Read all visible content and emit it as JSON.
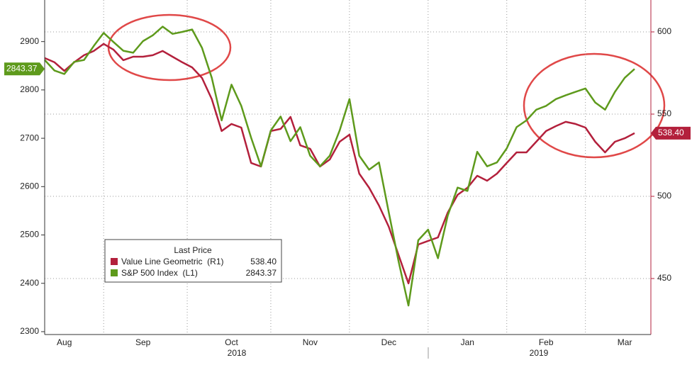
{
  "chart_data": {
    "type": "line",
    "categories": [
      null,
      null,
      "Aug",
      null,
      null,
      null,
      null,
      null,
      null,
      null,
      "Sep",
      null,
      null,
      null,
      null,
      null,
      null,
      null,
      null,
      "Oct",
      null,
      null,
      null,
      null,
      null,
      null,
      null,
      "Nov",
      null,
      null,
      null,
      null,
      null,
      null,
      null,
      "Dec",
      null,
      null,
      null,
      null,
      null,
      null,
      null,
      "Jan",
      null,
      null,
      null,
      null,
      null,
      null,
      null,
      "Feb",
      null,
      null,
      null,
      null,
      null,
      null,
      null,
      "Mar",
      null
    ],
    "year_labels": [
      "2018",
      "2019"
    ],
    "legend_title": "Last Price",
    "series": [
      {
        "name": "Value Line Geometric  (R1)",
        "color": "#b3203c",
        "axis": "y2",
        "last_label": "538.40",
        "values": [
          584.1,
          581.5,
          576.3,
          581.5,
          585.8,
          588.4,
          592.7,
          589.2,
          582.8,
          584.9,
          584.9,
          585.8,
          588.4,
          584.9,
          581.5,
          578.4,
          572,
          559.1,
          539.7,
          544,
          541.8,
          520.3,
          518.1,
          539.7,
          541,
          548.3,
          531,
          528.9,
          518.1,
          522.4,
          533.2,
          537.5,
          513.8,
          505.2,
          494.4,
          481.5,
          464.2,
          447,
          470.7,
          472.9,
          475,
          490.1,
          500.9,
          505.2,
          512.5,
          509.5,
          513.8,
          520.3,
          526.7,
          526.7,
          533.2,
          539.7,
          542.7,
          545.3,
          544,
          541.8,
          533.2,
          526.7,
          533.2,
          535.3,
          538.4
        ]
      },
      {
        "name": "S&P 500 Index  (L1)",
        "color": "#5e9a1c",
        "axis": "y",
        "last_label": "2843.37",
        "values": [
          2862,
          2840,
          2833,
          2858,
          2862,
          2891,
          2918,
          2899,
          2881,
          2877,
          2901,
          2913,
          2931,
          2916,
          2920,
          2925,
          2887,
          2825,
          2737,
          2811,
          2767,
          2701,
          2642,
          2716,
          2745,
          2694,
          2723,
          2664,
          2642,
          2664,
          2716,
          2781,
          2664,
          2635,
          2650,
          2547,
          2445,
          2354,
          2489,
          2511,
          2452,
          2540,
          2598,
          2591,
          2672,
          2642,
          2650,
          2679,
          2723,
          2737,
          2759,
          2767,
          2781,
          2789,
          2796,
          2803,
          2774,
          2759,
          2796,
          2825,
          2843.37
        ]
      }
    ],
    "ylim": [
      2297,
      2986
    ],
    "yticks": [
      2300,
      2400,
      2500,
      2600,
      2700,
      2800,
      2900
    ],
    "y2lim": [
      416.8,
      619.4
    ],
    "y2ticks": [
      450,
      500,
      550,
      600
    ],
    "grid": true
  }
}
